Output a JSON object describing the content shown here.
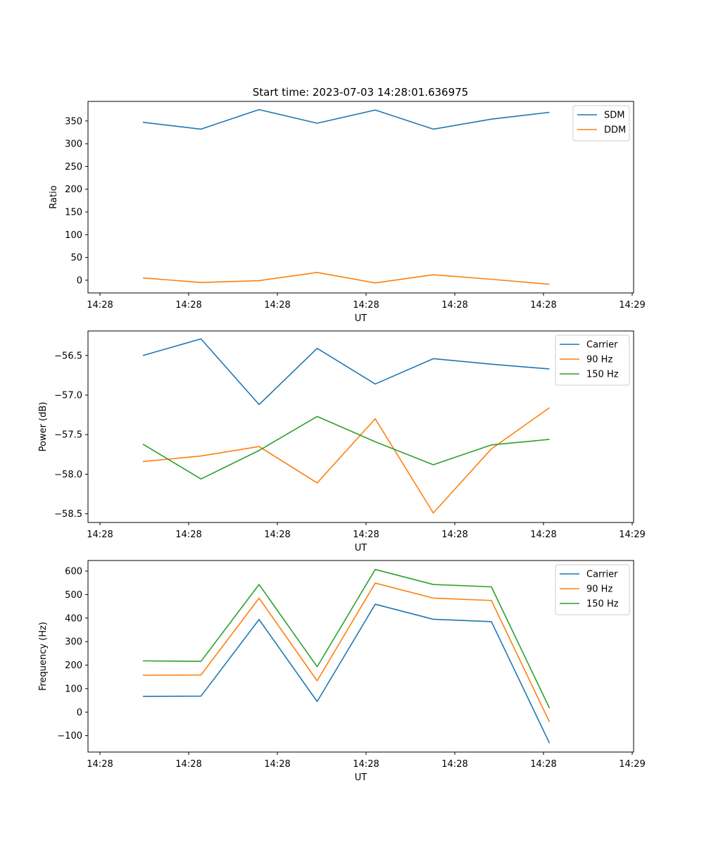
{
  "figure": {
    "title": "Start time: 2023-07-03 14:28:01.636975"
  },
  "colors": {
    "c0": "#1f77b4",
    "c1": "#ff7f0e",
    "c2": "#2ca02c"
  },
  "chart_data": [
    {
      "type": "line",
      "ylabel": "Ratio",
      "xlabel": "UT",
      "x_tick_labels": [
        "14:28",
        "14:28",
        "14:28",
        "14:28",
        "14:28",
        "14:28",
        "14:29"
      ],
      "ylim": [
        -28,
        393
      ],
      "y_ticks": [
        0,
        50,
        100,
        150,
        200,
        250,
        300,
        350
      ],
      "y_tick_labels": [
        "0",
        "50",
        "100",
        "150",
        "200",
        "250",
        "300",
        "350"
      ],
      "legend_position": "top-right",
      "series": [
        {
          "name": "SDM",
          "color": "#1f77b4",
          "values": [
            347,
            332,
            375,
            345,
            374,
            332,
            354,
            369
          ]
        },
        {
          "name": "DDM",
          "color": "#ff7f0e",
          "values": [
            5,
            -5,
            -1,
            17,
            -6,
            12,
            2,
            -9
          ]
        }
      ]
    },
    {
      "type": "line",
      "ylabel": "Power (dB)",
      "xlabel": "UT",
      "x_tick_labels": [
        "14:28",
        "14:28",
        "14:28",
        "14:28",
        "14:28",
        "14:28",
        "14:29"
      ],
      "ylim": [
        -58.61,
        -56.19
      ],
      "y_ticks": [
        -56.5,
        -57.0,
        -57.5,
        -58.0,
        -58.5
      ],
      "y_tick_labels": [
        "−56.5",
        "−57.0",
        "−57.5",
        "−58.0",
        "−58.5"
      ],
      "legend_position": "top-right",
      "series": [
        {
          "name": "Carrier",
          "color": "#1f77b4",
          "values": [
            -56.5,
            -56.29,
            -57.12,
            -56.41,
            -56.86,
            -56.54,
            -56.61,
            -56.67
          ]
        },
        {
          "name": "90 Hz",
          "color": "#ff7f0e",
          "values": [
            -57.84,
            -57.77,
            -57.65,
            -58.11,
            -57.3,
            -58.49,
            -57.68,
            -57.16
          ]
        },
        {
          "name": "150 Hz",
          "color": "#2ca02c",
          "values": [
            -57.62,
            -58.06,
            -57.7,
            -57.27,
            -57.59,
            -57.88,
            -57.63,
            -57.56
          ]
        }
      ]
    },
    {
      "type": "line",
      "ylabel": "Frequency (Hz)",
      "xlabel": "UT",
      "x_tick_labels": [
        "14:28",
        "14:28",
        "14:28",
        "14:28",
        "14:28",
        "14:28",
        "14:29"
      ],
      "ylim": [
        -170,
        645
      ],
      "y_ticks": [
        -100,
        0,
        100,
        200,
        300,
        400,
        500,
        600
      ],
      "y_tick_labels": [
        "−100",
        "0",
        "100",
        "200",
        "300",
        "400",
        "500",
        "600"
      ],
      "legend_position": "top-right",
      "series": [
        {
          "name": "Carrier",
          "color": "#1f77b4",
          "values": [
            67,
            68,
            394,
            45,
            459,
            395,
            385,
            -132
          ]
        },
        {
          "name": "90 Hz",
          "color": "#ff7f0e",
          "values": [
            157,
            158,
            485,
            133,
            549,
            485,
            475,
            -42
          ]
        },
        {
          "name": "150 Hz",
          "color": "#2ca02c",
          "values": [
            218,
            216,
            543,
            193,
            607,
            543,
            533,
            17
          ]
        }
      ]
    }
  ]
}
